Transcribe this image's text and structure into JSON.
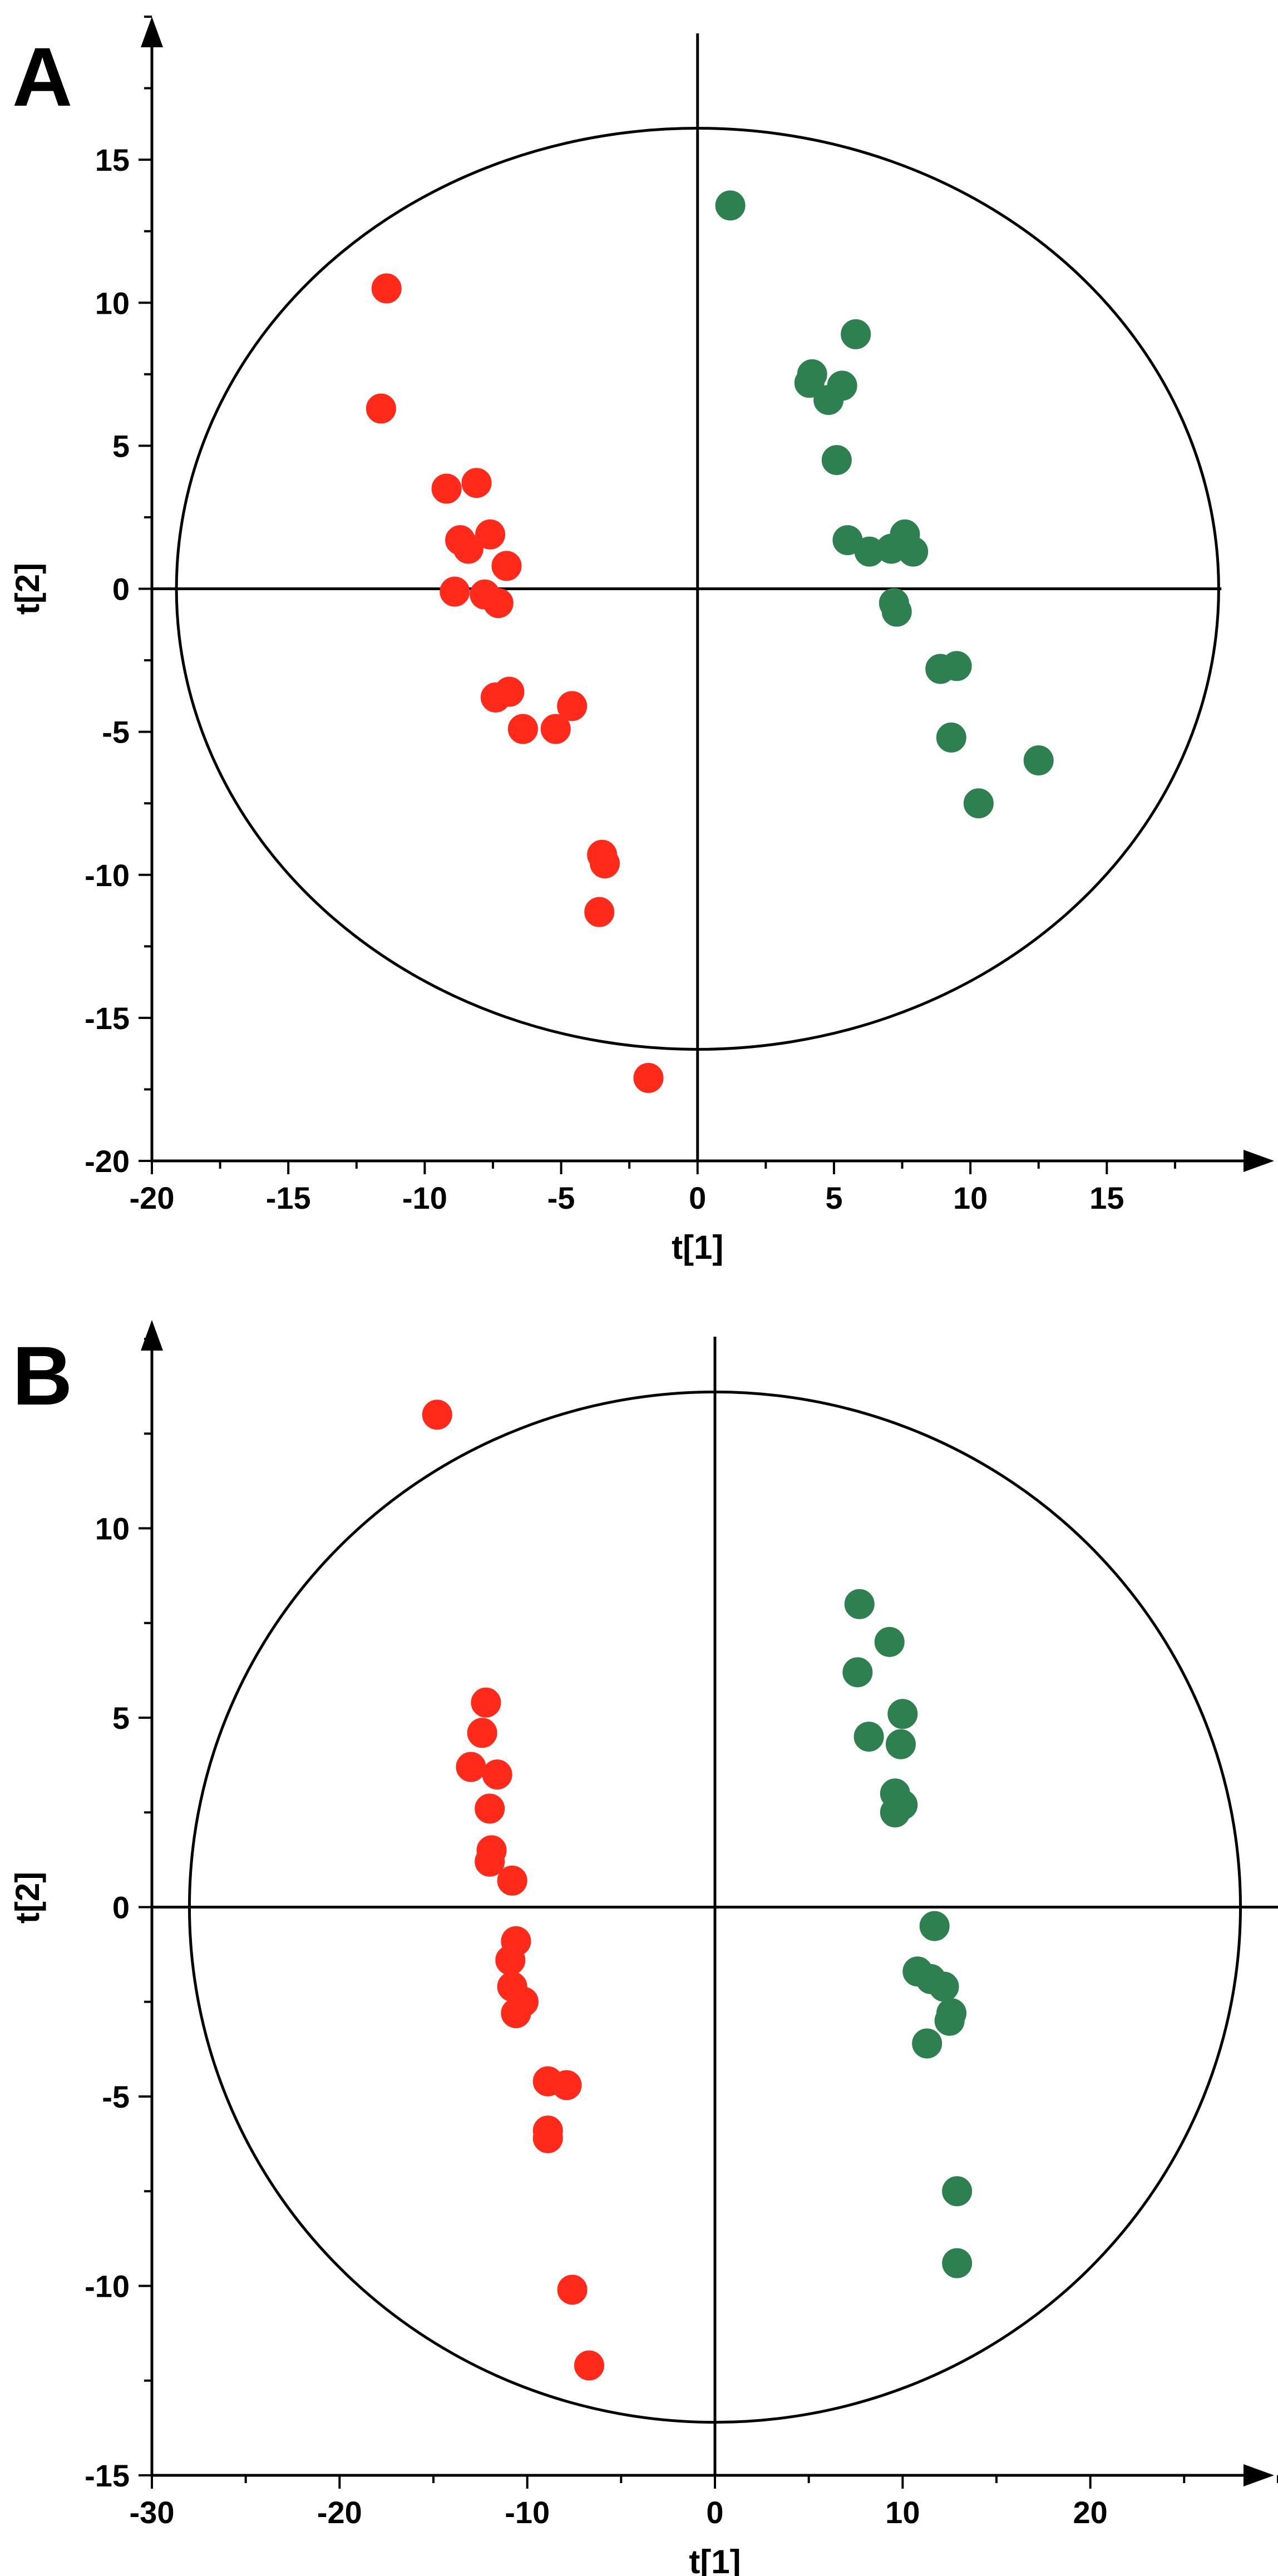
{
  "chart_data": [
    {
      "panel": "A",
      "type": "scatter",
      "title": "",
      "xlabel": "t[1]",
      "ylabel": "t[2]",
      "xlim": [
        -20,
        20
      ],
      "ylim": [
        -20,
        20
      ],
      "xticks": [
        -20,
        -15,
        -10,
        -5,
        0,
        5,
        10,
        15
      ],
      "yticks": [
        -20,
        -15,
        -10,
        -5,
        0,
        5,
        10,
        15
      ],
      "xtick_labels": [
        "-20",
        "-15",
        "-10",
        "-5",
        "0",
        "5",
        "10",
        "15"
      ],
      "ytick_labels": [
        "-20",
        "-15",
        "-10",
        "-5",
        "0",
        "5",
        "10",
        "15"
      ],
      "ellipse": {
        "cx": 0,
        "cy": 0,
        "rx": 19.1,
        "ry": 16.1
      },
      "grid": false,
      "legend": "none",
      "series": [
        {
          "name": "group-red",
          "color": "#ff2a1a",
          "points": [
            [
              -11.4,
              10.5
            ],
            [
              -11.6,
              6.3
            ],
            [
              -9.2,
              3.5
            ],
            [
              -8.1,
              3.7
            ],
            [
              -8.7,
              1.7
            ],
            [
              -8.4,
              1.4
            ],
            [
              -7.6,
              1.9
            ],
            [
              -7.0,
              0.8
            ],
            [
              -8.9,
              -0.1
            ],
            [
              -7.8,
              -0.2
            ],
            [
              -7.3,
              -0.5
            ],
            [
              -7.4,
              -3.8
            ],
            [
              -6.9,
              -3.6
            ],
            [
              -6.4,
              -4.9
            ],
            [
              -5.2,
              -4.9
            ],
            [
              -4.6,
              -4.1
            ],
            [
              -3.5,
              -9.3
            ],
            [
              -3.4,
              -9.6
            ],
            [
              -3.6,
              -11.3
            ],
            [
              -1.8,
              -17.1
            ]
          ]
        },
        {
          "name": "group-green",
          "color": "#2e8051",
          "points": [
            [
              1.2,
              13.4
            ],
            [
              5.8,
              8.9
            ],
            [
              4.2,
              7.5
            ],
            [
              4.1,
              7.2
            ],
            [
              5.3,
              7.1
            ],
            [
              4.8,
              6.6
            ],
            [
              5.1,
              4.5
            ],
            [
              5.5,
              1.7
            ],
            [
              6.3,
              1.3
            ],
            [
              7.1,
              1.4
            ],
            [
              7.6,
              1.9
            ],
            [
              7.9,
              1.3
            ],
            [
              7.2,
              -0.5
            ],
            [
              7.3,
              -0.8
            ],
            [
              8.9,
              -2.8
            ],
            [
              9.5,
              -2.7
            ],
            [
              9.3,
              -5.2
            ],
            [
              12.5,
              -6.0
            ],
            [
              10.3,
              -7.5
            ]
          ]
        }
      ]
    },
    {
      "panel": "B",
      "type": "scatter",
      "title": "",
      "xlabel": "t[1]",
      "ylabel": "t[2]",
      "xlim": [
        -30,
        30
      ],
      "ylim": [
        -15,
        15
      ],
      "xticks": [
        -30,
        -20,
        -10,
        0,
        10,
        20
      ],
      "yticks": [
        -15,
        -10,
        -5,
        0,
        5,
        10
      ],
      "xtick_labels": [
        "-30",
        "-20",
        "-10",
        "0",
        "10",
        "20"
      ],
      "ytick_labels": [
        "-15",
        "-10",
        "-5",
        "0",
        "5",
        "10"
      ],
      "ellipse": {
        "cx": 0,
        "cy": 0,
        "rx": 28.0,
        "ry": 13.6
      },
      "grid": false,
      "legend": "none",
      "series": [
        {
          "name": "group-red",
          "color": "#ff2a1a",
          "points": [
            [
              -14.8,
              13.0
            ],
            [
              -12.2,
              5.4
            ],
            [
              -12.4,
              4.6
            ],
            [
              -13.0,
              3.7
            ],
            [
              -11.6,
              3.5
            ],
            [
              -12.0,
              2.6
            ],
            [
              -11.9,
              1.5
            ],
            [
              -12.0,
              1.2
            ],
            [
              -10.8,
              0.7
            ],
            [
              -10.6,
              -0.9
            ],
            [
              -10.9,
              -1.4
            ],
            [
              -10.8,
              -2.1
            ],
            [
              -10.2,
              -2.5
            ],
            [
              -10.6,
              -2.8
            ],
            [
              -8.9,
              -4.6
            ],
            [
              -7.9,
              -4.7
            ],
            [
              -8.9,
              -5.9
            ],
            [
              -8.9,
              -6.1
            ],
            [
              -7.6,
              -10.1
            ],
            [
              -6.7,
              -12.1
            ]
          ]
        },
        {
          "name": "group-green",
          "color": "#2e8051",
          "points": [
            [
              7.7,
              8.0
            ],
            [
              9.3,
              7.0
            ],
            [
              7.6,
              6.2
            ],
            [
              10.0,
              5.1
            ],
            [
              8.2,
              4.5
            ],
            [
              9.9,
              4.3
            ],
            [
              9.6,
              3.0
            ],
            [
              10.0,
              2.7
            ],
            [
              9.6,
              2.5
            ],
            [
              11.7,
              -0.5
            ],
            [
              10.8,
              -1.7
            ],
            [
              11.5,
              -1.9
            ],
            [
              12.2,
              -2.1
            ],
            [
              12.6,
              -2.8
            ],
            [
              12.5,
              -3.0
            ],
            [
              11.3,
              -3.6
            ],
            [
              12.9,
              -7.5
            ],
            [
              12.9,
              -9.4
            ]
          ]
        }
      ]
    }
  ]
}
